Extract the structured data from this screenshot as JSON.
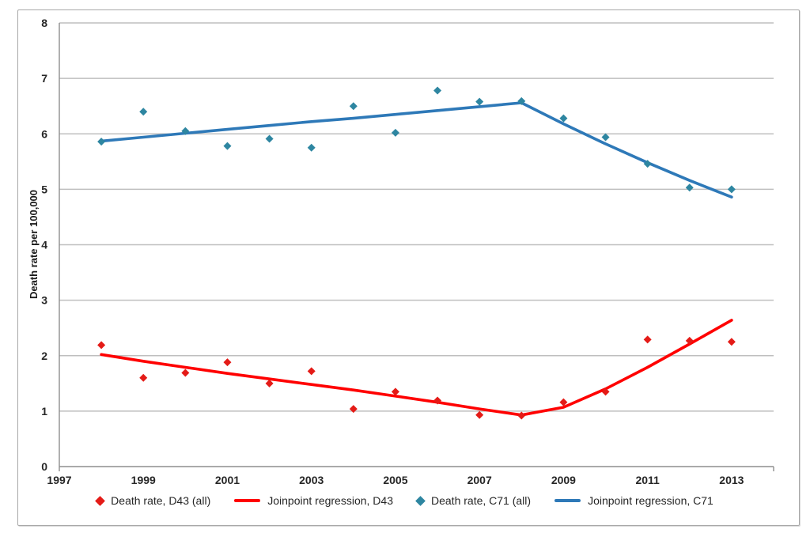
{
  "figure": {
    "background": "#FFFFFF",
    "border_color": "#A8A8A8"
  },
  "chart_data": {
    "type": "line",
    "subtype": "scatter-with-joinpoint-regression-lines",
    "title": "",
    "xlabel": "",
    "ylabel": "Death rate per 100,000",
    "xlim": [
      1997,
      2014
    ],
    "ylim": [
      0,
      8
    ],
    "yticks": [
      0,
      1,
      2,
      3,
      4,
      5,
      6,
      7,
      8
    ],
    "xtick_years": [
      1997,
      1999,
      2001,
      2003,
      2005,
      2007,
      2009,
      2011,
      2013
    ],
    "xtick_labels": [
      "1997",
      "1999",
      "2001",
      "2003",
      "2005",
      "2007",
      "2009",
      "2011",
      "2013"
    ],
    "grid": "horizontal",
    "grid_color": "#BFBFBF",
    "axis_color": "#8E8E8E",
    "tick_text_color": "#262626",
    "years": [
      1998,
      1999,
      2000,
      2001,
      2002,
      2003,
      2004,
      2005,
      2006,
      2007,
      2008,
      2009,
      2010,
      2011,
      2012,
      2013
    ],
    "series": [
      {
        "key": "d43-scatter",
        "name": "Death rate, D43 (all)",
        "kind": "scatter",
        "marker": "diamond",
        "color": "#E41B17",
        "values": [
          2.19,
          1.6,
          1.69,
          1.88,
          1.5,
          1.72,
          1.04,
          1.35,
          1.19,
          0.93,
          0.92,
          1.16,
          1.35,
          2.29,
          2.27,
          2.25
        ]
      },
      {
        "key": "d43-regression",
        "name": "Joinpoint regression, D43",
        "kind": "line",
        "color": "#FF0000",
        "joinpoint_year": 2008,
        "values": [
          2.02,
          1.9,
          1.79,
          1.68,
          1.58,
          1.48,
          1.38,
          1.27,
          1.16,
          1.04,
          0.93,
          1.07,
          1.4,
          1.79,
          2.21,
          2.64
        ]
      },
      {
        "key": "c71-scatter",
        "name": "Death rate, C71 (all)",
        "kind": "scatter",
        "marker": "diamond",
        "color": "#2E86A1",
        "values": [
          5.86,
          6.4,
          6.05,
          5.78,
          5.91,
          5.75,
          6.5,
          6.02,
          6.78,
          6.58,
          6.59,
          6.28,
          5.94,
          5.46,
          5.03,
          5.0
        ]
      },
      {
        "key": "c71-regression",
        "name": "Joinpoint regression, C71",
        "kind": "line",
        "color": "#2E79B8",
        "joinpoint_year": 2008,
        "values": [
          5.87,
          5.94,
          6.01,
          6.08,
          6.15,
          6.22,
          6.28,
          6.35,
          6.42,
          6.49,
          6.56,
          6.18,
          5.82,
          5.48,
          5.16,
          4.86
        ]
      }
    ],
    "legend": {
      "position": "bottom",
      "entries": [
        {
          "label": "Death rate, D43 (all)",
          "marker": "diamond",
          "color": "#E41B17"
        },
        {
          "label": "Joinpoint regression, D43",
          "marker": "line",
          "color": "#FF0000"
        },
        {
          "label": "Death rate, C71 (all)",
          "marker": "diamond",
          "color": "#2E86A1"
        },
        {
          "label": "Joinpoint regression, C71",
          "marker": "line",
          "color": "#2E79B8"
        }
      ]
    }
  }
}
